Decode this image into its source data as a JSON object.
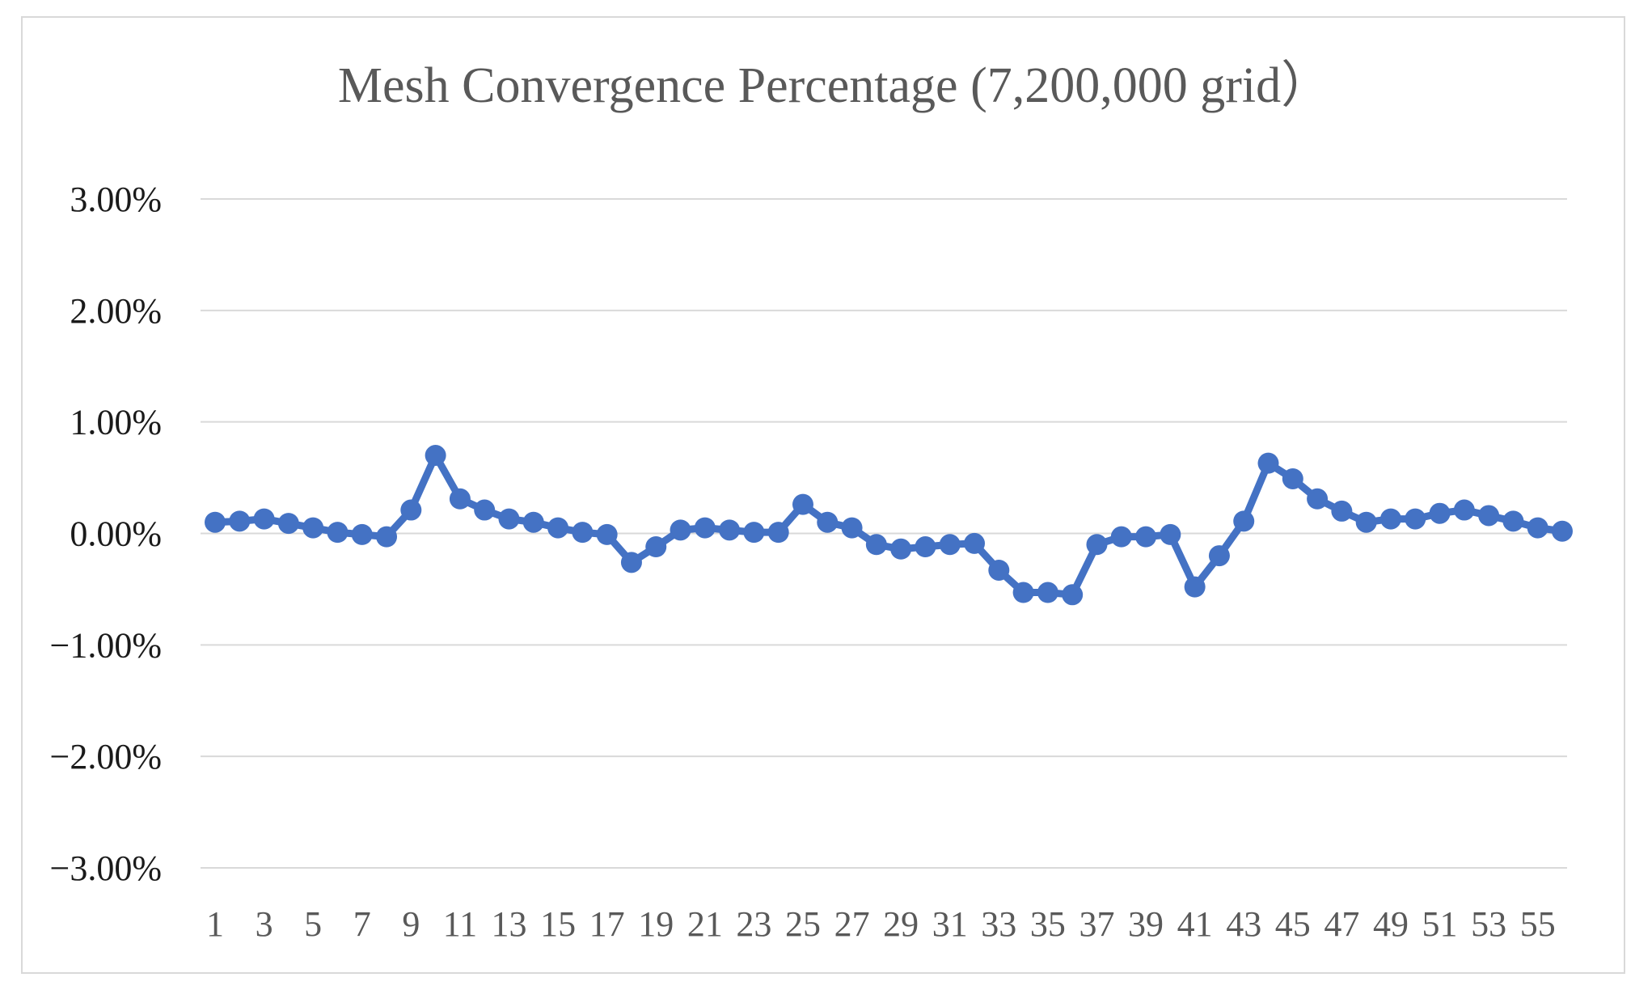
{
  "chart_data": {
    "type": "line",
    "title": "Mesh Convergence Percentage (7,200,000 grid）",
    "xlabel": "",
    "ylabel": "",
    "ylim": [
      -3,
      3
    ],
    "y_ticks": [
      3,
      2,
      1,
      0,
      -1,
      -2,
      -3
    ],
    "y_tick_labels": [
      "3.00%",
      "2.00%",
      "1.00%",
      "0.00%",
      "−1.00%",
      "−2.00%",
      "−3.00%"
    ],
    "x": [
      1,
      2,
      3,
      4,
      5,
      6,
      7,
      8,
      9,
      10,
      11,
      12,
      13,
      14,
      15,
      16,
      17,
      18,
      19,
      20,
      21,
      22,
      23,
      24,
      25,
      26,
      27,
      28,
      29,
      30,
      31,
      32,
      33,
      34,
      35,
      36,
      37,
      38,
      39,
      40,
      41,
      42,
      43,
      44,
      45,
      46,
      47,
      48,
      49,
      50,
      51,
      52,
      53,
      54,
      55,
      56
    ],
    "x_tick_labels": [
      "1",
      "3",
      "5",
      "7",
      "9",
      "11",
      "13",
      "15",
      "17",
      "19",
      "21",
      "23",
      "25",
      "27",
      "29",
      "31",
      "33",
      "35",
      "37",
      "39",
      "41",
      "43",
      "45",
      "47",
      "49",
      "51",
      "53",
      "55"
    ],
    "series": [
      {
        "values": [
          0.1,
          0.11,
          0.13,
          0.09,
          0.05,
          0.01,
          -0.01,
          -0.03,
          0.21,
          0.7,
          0.31,
          0.21,
          0.13,
          0.1,
          0.05,
          0.01,
          -0.01,
          -0.26,
          -0.12,
          0.03,
          0.05,
          0.03,
          0.01,
          0.01,
          0.26,
          0.1,
          0.05,
          -0.1,
          -0.14,
          -0.12,
          -0.1,
          -0.09,
          -0.33,
          -0.53,
          -0.53,
          -0.55,
          -0.1,
          -0.03,
          -0.03,
          -0.01,
          -0.48,
          -0.2,
          0.11,
          0.63,
          0.49,
          0.31,
          0.2,
          0.1,
          0.13,
          0.13,
          0.18,
          0.21,
          0.16,
          0.11,
          0.05,
          0.02
        ]
      }
    ],
    "grid": true,
    "legend": "none",
    "colors": {
      "series": "#4472c4",
      "grid": "#d9d9d9"
    }
  }
}
